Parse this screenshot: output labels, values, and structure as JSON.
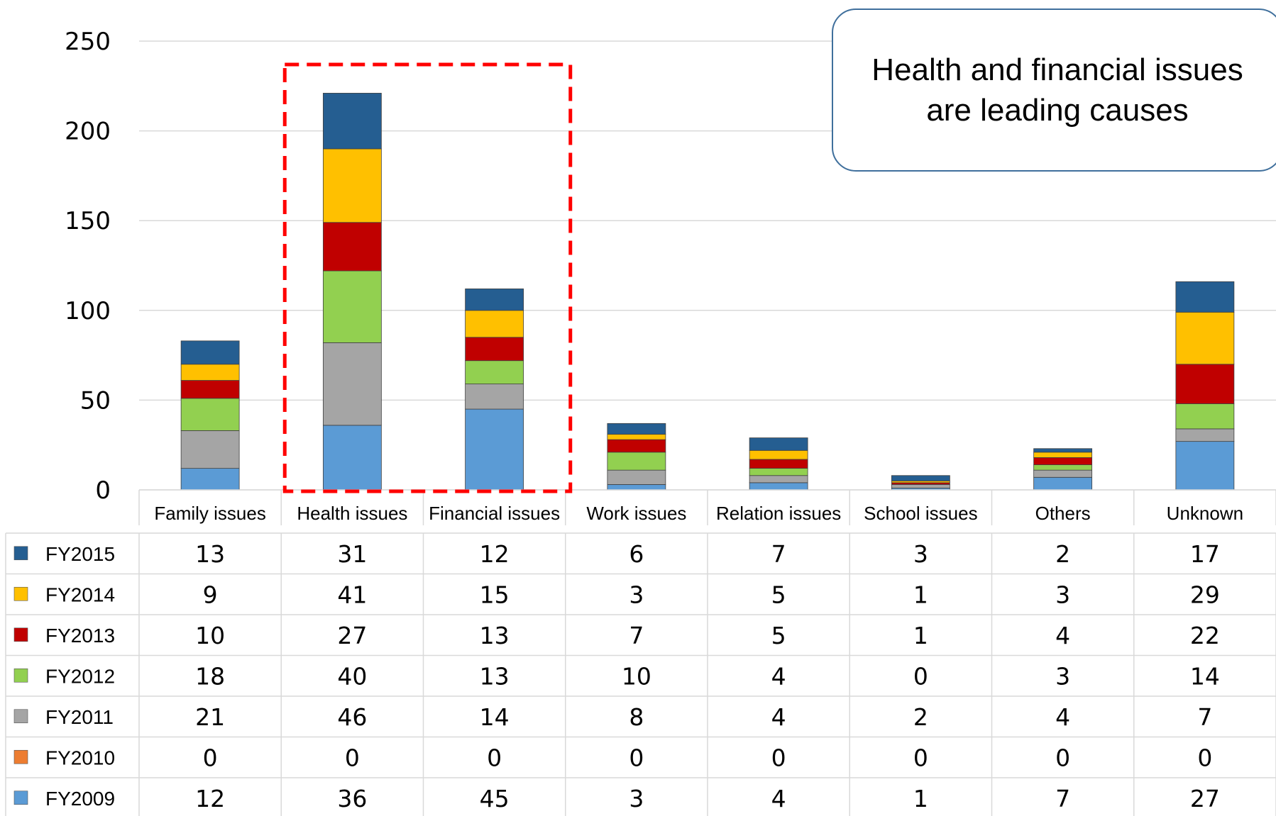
{
  "chart_data": {
    "type": "bar",
    "stacked": true,
    "categories": [
      "Family issues",
      "Health issues",
      "Financial issues",
      "Work issues",
      "Relation issues",
      "School issues",
      "Others",
      "Unknown"
    ],
    "ylim": [
      0,
      250
    ],
    "yticks": [
      0,
      50,
      100,
      150,
      200,
      250
    ],
    "grid": true,
    "legend_placement": "left of data table",
    "series": [
      {
        "name": "FY2009",
        "color": "#5b9bd5",
        "values": [
          12,
          36,
          45,
          3,
          4,
          1,
          7,
          27
        ]
      },
      {
        "name": "FY2010",
        "color": "#ed7d31",
        "values": [
          0,
          0,
          0,
          0,
          0,
          0,
          0,
          0
        ]
      },
      {
        "name": "FY2011",
        "color": "#a5a5a5",
        "values": [
          21,
          46,
          14,
          8,
          4,
          2,
          4,
          7
        ]
      },
      {
        "name": "FY2012",
        "color": "#92d050",
        "values": [
          18,
          40,
          13,
          10,
          4,
          0,
          3,
          14
        ]
      },
      {
        "name": "FY2013",
        "color": "#c00000",
        "values": [
          10,
          27,
          13,
          7,
          5,
          1,
          4,
          22
        ]
      },
      {
        "name": "FY2014",
        "color": "#ffc000",
        "values": [
          9,
          41,
          15,
          3,
          5,
          1,
          3,
          29
        ]
      },
      {
        "name": "FY2015",
        "color": "#255e91",
        "values": [
          13,
          31,
          12,
          6,
          7,
          3,
          2,
          17
        ]
      }
    ],
    "table_row_order": [
      "FY2015",
      "FY2014",
      "FY2013",
      "FY2012",
      "FY2011",
      "FY2010",
      "FY2009"
    ],
    "annotation": {
      "text": "Health and financial issues are leading causes",
      "highlighted_categories": [
        "Health issues",
        "Financial issues"
      ],
      "highlight_color": "#ff0000"
    }
  }
}
